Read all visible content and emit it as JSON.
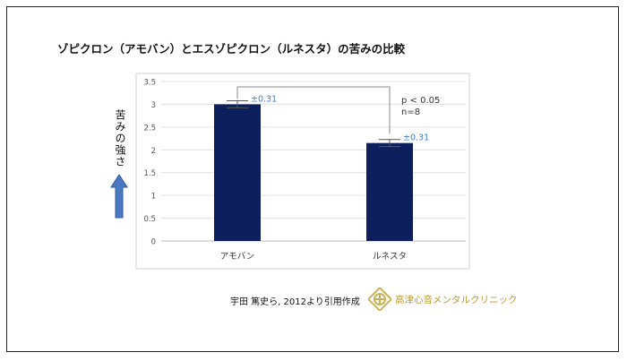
{
  "title": "ゾピクロン（アモバン）とエスゾピクロン（ルネスタ）の苦みの比較",
  "chart_data": {
    "type": "bar",
    "categories": [
      "アモバン",
      "ルネスタ"
    ],
    "values": [
      3.0,
      2.15
    ],
    "errors": [
      0.31,
      0.31
    ],
    "error_labels": [
      "±0.31",
      "±0.31"
    ],
    "ylabel": "苦みの強さ",
    "ylim": [
      0,
      3.5
    ],
    "yticks": [
      "0",
      "0.5",
      "1",
      "1.5",
      "2",
      "2.5",
      "3",
      "3.5"
    ],
    "stats": {
      "p": "p < 0.05",
      "n": "n=8"
    },
    "grid": true,
    "bar_color": "#0d1f5c",
    "error_label_color": "#3a7fc4"
  },
  "citation": "宇田 篤史ら, 2012より引用作成",
  "clinic_name": "高津心音メンタルクリニック",
  "colors": {
    "arrow": "#4a78c2",
    "logo": "#c8b15a",
    "clinic_text": "#b99a2f"
  }
}
